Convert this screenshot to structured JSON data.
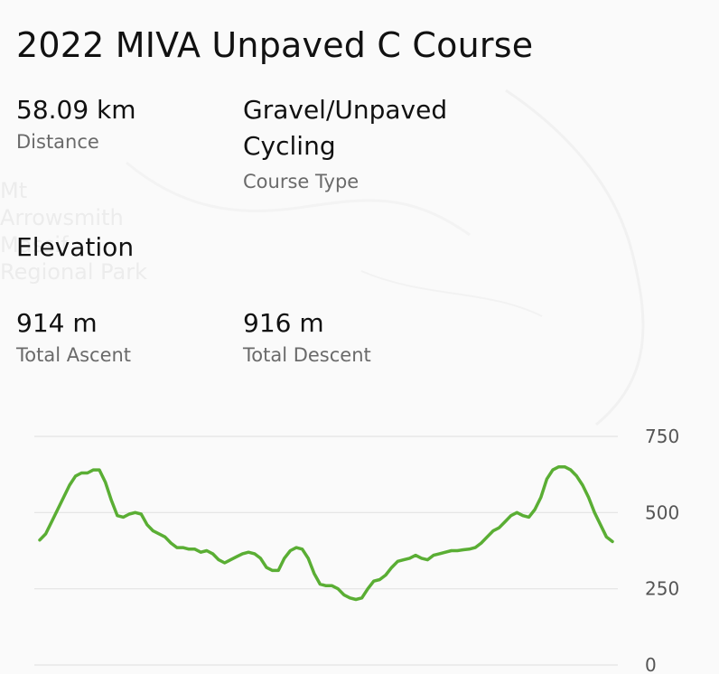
{
  "map": {
    "park_label": "Mt\nArrowsmith\nMassif\nRegional Park"
  },
  "course": {
    "title": "2022 MIVA Unpaved C Course",
    "distance": {
      "value": "58.09 km",
      "label": "Distance"
    },
    "course_type": {
      "value": "Gravel/Unpaved\nCycling",
      "label": "Course Type"
    }
  },
  "elevation": {
    "title": "Elevation",
    "total_ascent": {
      "value": "914 m",
      "label": "Total Ascent"
    },
    "total_descent": {
      "value": "916 m",
      "label": "Total Descent"
    }
  },
  "colors": {
    "line": "#5aae34",
    "grid": "#e3e3e3"
  },
  "chart_data": {
    "type": "line",
    "y_ticks": [
      "750",
      "500",
      "250",
      "0"
    ],
    "ylim": [
      0,
      750
    ],
    "grid": true,
    "series": [
      {
        "values": [
          410,
          430,
          470,
          510,
          550,
          590,
          620,
          630,
          630,
          640,
          640,
          600,
          540,
          490,
          485,
          495,
          500,
          495,
          460,
          440,
          430,
          420,
          400,
          385,
          385,
          380,
          380,
          370,
          375,
          365,
          345,
          335,
          345,
          355,
          365,
          370,
          365,
          350,
          320,
          310,
          310,
          350,
          375,
          385,
          380,
          350,
          300,
          265,
          260,
          260,
          250,
          230,
          220,
          215,
          220,
          250,
          275,
          280,
          295,
          320,
          340,
          345,
          350,
          360,
          350,
          345,
          360,
          365,
          370,
          375,
          375,
          378,
          380,
          385,
          400,
          420,
          440,
          450,
          470,
          490,
          500,
          490,
          485,
          510,
          550,
          610,
          640,
          650,
          650,
          640,
          620,
          590,
          550,
          500,
          460,
          420,
          405
        ]
      }
    ]
  }
}
